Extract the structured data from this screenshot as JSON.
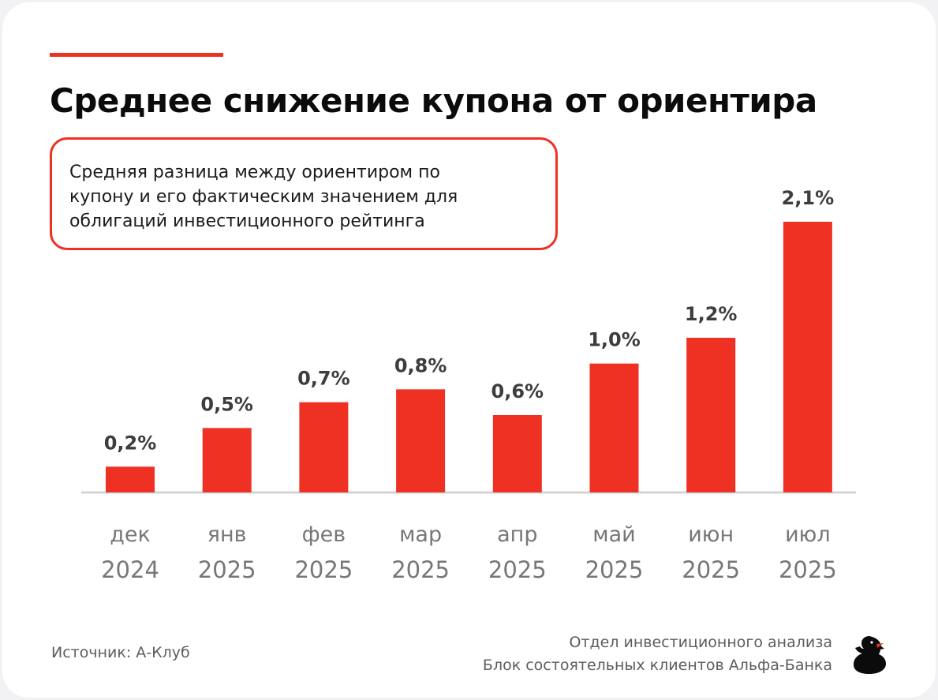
{
  "header": {
    "title": "Среднее снижение купона от ориентира",
    "subtitle_lines": [
      "Средняя разница между ориентиром по",
      "купону и его фактическим значением для",
      "облигаций инвестиционного рейтинга"
    ]
  },
  "chart_data": {
    "type": "bar",
    "categories": [
      [
        "дек",
        "2024"
      ],
      [
        "янв",
        "2025"
      ],
      [
        "фев",
        "2025"
      ],
      [
        "мар",
        "2025"
      ],
      [
        "апр",
        "2025"
      ],
      [
        "май",
        "2025"
      ],
      [
        "июн",
        "2025"
      ],
      [
        "июл",
        "2025"
      ]
    ],
    "values": [
      0.2,
      0.5,
      0.7,
      0.8,
      0.6,
      1.0,
      1.2,
      2.1
    ],
    "data_labels": [
      "0,2%",
      "0,5%",
      "0,7%",
      "0,8%",
      "0,6%",
      "1,0%",
      "1,2%",
      "2,1%"
    ],
    "unit": "%",
    "ylim": [
      0,
      2.1
    ],
    "grid": false,
    "legend": "none",
    "bar_color": "#ef3124"
  },
  "footer": {
    "source": "Источник: А-Клуб",
    "credit_lines": [
      "Отдел инвестиционного анализа",
      "Блок состоятельных клиентов Альфа-Банка"
    ]
  },
  "icons": {
    "logo": "duck-logo-icon"
  },
  "colors": {
    "accent": "#ef3124",
    "background": "#ffffff",
    "label": "#3d3d3d",
    "muted": "#5d5d5d"
  }
}
